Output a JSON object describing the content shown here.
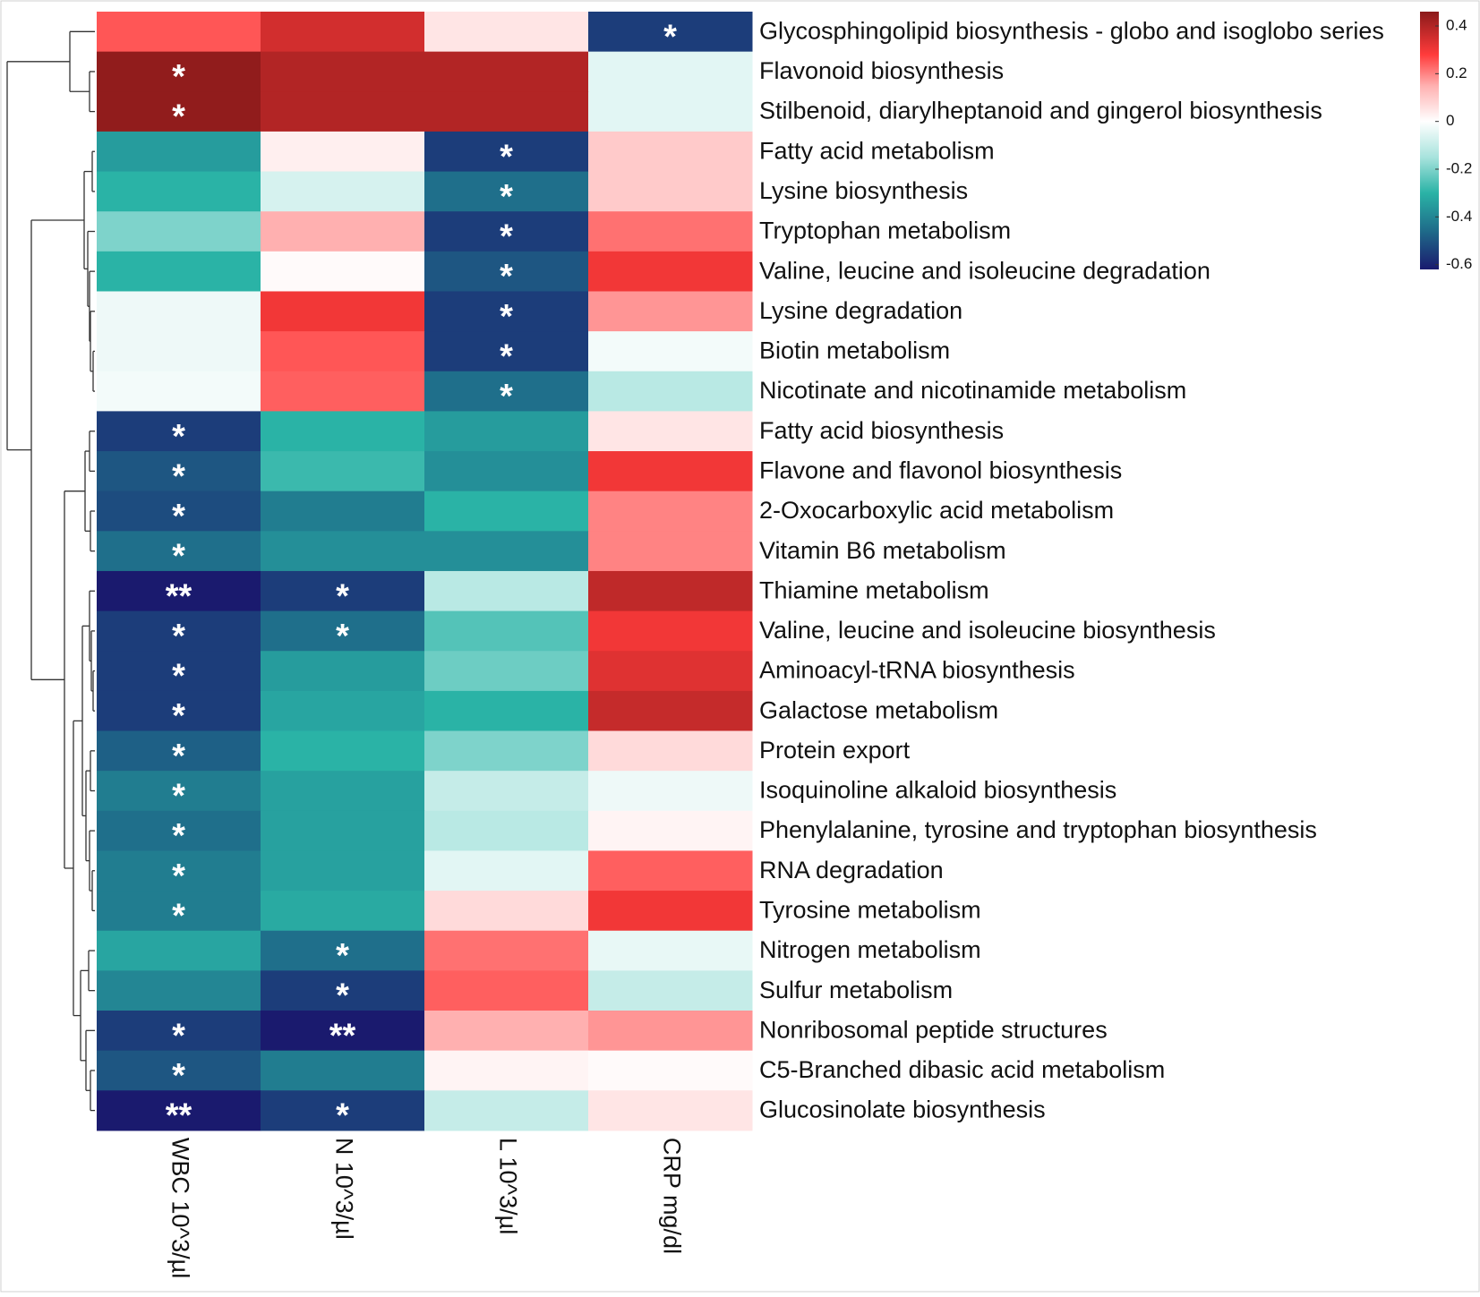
{
  "chart_data": {
    "type": "heatmap",
    "rows": [
      "Glycosphingolipid biosynthesis - globo and isoglobo series",
      "Flavonoid biosynthesis",
      "Stilbenoid, diarylheptanoid and gingerol biosynthesis",
      "Fatty acid metabolism",
      "Lysine biosynthesis",
      "Tryptophan metabolism",
      "Valine, leucine and isoleucine degradation",
      "Lysine degradation",
      "Biotin metabolism",
      "Nicotinate and nicotinamide metabolism",
      "Fatty acid biosynthesis",
      "Flavone and flavonol biosynthesis",
      "2-Oxocarboxylic acid metabolism",
      "Vitamin B6 metabolism",
      "Thiamine metabolism",
      "Valine, leucine and isoleucine biosynthesis",
      "Aminoacyl-tRNA biosynthesis",
      "Galactose metabolism",
      "Protein export",
      "Isoquinoline alkaloid biosynthesis",
      "Phenylalanine, tyrosine and tryptophan biosynthesis",
      "RNA degradation",
      "Tyrosine metabolism",
      "Nitrogen metabolism",
      "Sulfur metabolism",
      "Nonribosomal peptide structures",
      "C5-Branched dibasic acid metabolism",
      "Glucosinolate biosynthesis"
    ],
    "columns": [
      "WBC 10^3/µl",
      "N 10^3/µl",
      "L 10^3/µl",
      "CRP mg/dl"
    ],
    "values": [
      [
        0.25,
        0.35,
        0.05,
        -0.55
      ],
      [
        0.45,
        0.4,
        0.4,
        -0.05
      ],
      [
        0.45,
        0.4,
        0.4,
        -0.05
      ],
      [
        -0.35,
        0.03,
        -0.55,
        0.1
      ],
      [
        -0.3,
        -0.07,
        -0.45,
        0.1
      ],
      [
        -0.2,
        0.15,
        -0.55,
        0.22
      ],
      [
        -0.3,
        0.01,
        -0.5,
        0.3
      ],
      [
        -0.03,
        0.3,
        -0.55,
        0.18
      ],
      [
        -0.03,
        0.25,
        -0.55,
        -0.02
      ],
      [
        -0.02,
        0.24,
        -0.45,
        -0.12
      ],
      [
        -0.55,
        -0.3,
        -0.35,
        0.05
      ],
      [
        -0.5,
        -0.28,
        -0.38,
        0.3
      ],
      [
        -0.52,
        -0.42,
        -0.3,
        0.2
      ],
      [
        -0.45,
        -0.38,
        -0.38,
        0.2
      ],
      [
        -0.62,
        -0.55,
        -0.12,
        0.38
      ],
      [
        -0.55,
        -0.45,
        -0.25,
        0.3
      ],
      [
        -0.55,
        -0.35,
        -0.22,
        0.33
      ],
      [
        -0.55,
        -0.33,
        -0.3,
        0.37
      ],
      [
        -0.48,
        -0.3,
        -0.2,
        0.07
      ],
      [
        -0.42,
        -0.34,
        -0.1,
        -0.03
      ],
      [
        -0.45,
        -0.34,
        -0.12,
        0.02
      ],
      [
        -0.42,
        -0.34,
        -0.05,
        0.24
      ],
      [
        -0.42,
        -0.32,
        0.07,
        0.3
      ],
      [
        -0.33,
        -0.45,
        0.22,
        -0.04
      ],
      [
        -0.4,
        -0.55,
        0.24,
        -0.1
      ],
      [
        -0.55,
        -0.62,
        0.15,
        0.18
      ],
      [
        -0.5,
        -0.42,
        0.02,
        0.01
      ],
      [
        -0.62,
        -0.55,
        -0.1,
        0.05
      ]
    ],
    "significance": [
      [
        null,
        null,
        null,
        "*"
      ],
      [
        "*",
        null,
        null,
        null
      ],
      [
        "*",
        null,
        null,
        null
      ],
      [
        null,
        null,
        "*",
        null
      ],
      [
        null,
        null,
        "*",
        null
      ],
      [
        null,
        null,
        "*",
        null
      ],
      [
        null,
        null,
        "*",
        null
      ],
      [
        null,
        null,
        "*",
        null
      ],
      [
        null,
        null,
        "*",
        null
      ],
      [
        null,
        null,
        "*",
        null
      ],
      [
        "*",
        null,
        null,
        null
      ],
      [
        "*",
        null,
        null,
        null
      ],
      [
        "*",
        null,
        null,
        null
      ],
      [
        "*",
        null,
        null,
        null
      ],
      [
        "**",
        "*",
        null,
        null
      ],
      [
        "*",
        "*",
        null,
        null
      ],
      [
        "*",
        null,
        null,
        null
      ],
      [
        "*",
        null,
        null,
        null
      ],
      [
        "*",
        null,
        null,
        null
      ],
      [
        "*",
        null,
        null,
        null
      ],
      [
        "*",
        null,
        null,
        null
      ],
      [
        "*",
        null,
        null,
        null
      ],
      [
        "*",
        null,
        null,
        null
      ],
      [
        null,
        "*",
        null,
        null
      ],
      [
        null,
        "*",
        null,
        null
      ],
      [
        "*",
        "**",
        null,
        null
      ],
      [
        "*",
        null,
        null,
        null
      ],
      [
        "**",
        "*",
        null,
        null
      ]
    ],
    "clim": [
      -0.62,
      0.46
    ],
    "cticks": [
      0.4,
      0.2,
      0,
      -0.2,
      -0.4,
      -0.6
    ],
    "colorscale": [
      {
        "value": -0.62,
        "color": "#1a1a6e"
      },
      {
        "value": -0.45,
        "color": "#1f6f8b"
      },
      {
        "value": -0.3,
        "color": "#2ab3a6"
      },
      {
        "value": -0.15,
        "color": "#a8e3dd"
      },
      {
        "value": 0,
        "color": "#ffffff"
      },
      {
        "value": 0.15,
        "color": "#ffb0b0"
      },
      {
        "value": 0.28,
        "color": "#ff3b3b"
      },
      {
        "value": 0.46,
        "color": "#8b1a1a"
      }
    ]
  }
}
